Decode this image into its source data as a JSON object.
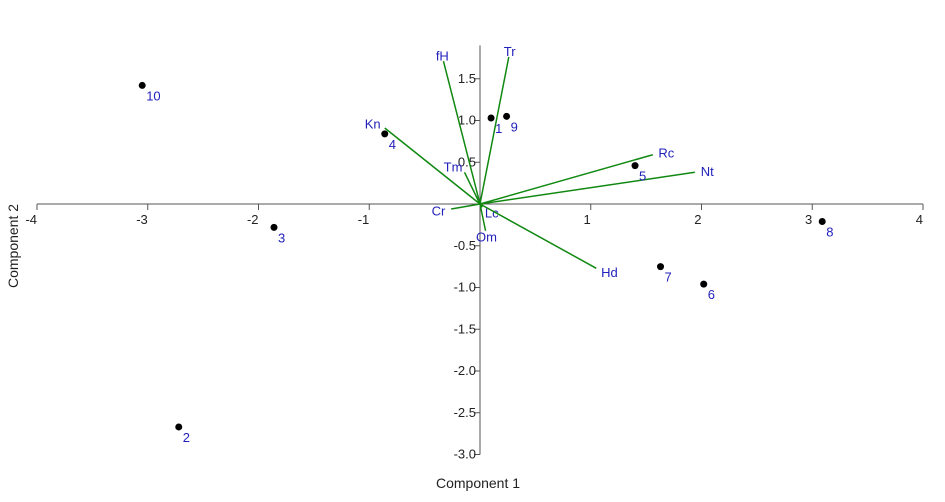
{
  "chart_data": {
    "type": "scatter",
    "subtype": "biplot",
    "title": "",
    "xlabel": "Component 1",
    "ylabel": "Component 2",
    "xlim": [
      -4,
      4
    ],
    "ylim": [
      -3.0,
      1.9
    ],
    "x_ticks": [
      "-4",
      "-3",
      "-2",
      "-1",
      "1",
      "2",
      "3",
      "4"
    ],
    "y_ticks": [
      "1.5",
      "1.0",
      "0.5",
      "-0.5",
      "-1.0",
      "-1.5",
      "-2.0",
      "-2.5",
      "-3.0"
    ],
    "grid": false,
    "legend": "none",
    "colors": {
      "points": "#000000",
      "labels": "#2222bb",
      "vectors": "#118811",
      "axes": "#555555"
    },
    "points": [
      {
        "label": "1",
        "x": 0.1,
        "y": 1.03
      },
      {
        "label": "2",
        "x": -2.72,
        "y": -2.67
      },
      {
        "label": "3",
        "x": -1.86,
        "y": -0.28
      },
      {
        "label": "4",
        "x": -0.86,
        "y": 0.84
      },
      {
        "label": "5",
        "x": 1.4,
        "y": 0.46
      },
      {
        "label": "6",
        "x": 2.02,
        "y": -0.96
      },
      {
        "label": "7",
        "x": 1.63,
        "y": -0.75
      },
      {
        "label": "8",
        "x": 3.09,
        "y": -0.21
      },
      {
        "label": "9",
        "x": 0.24,
        "y": 1.05
      },
      {
        "label": "10",
        "x": -3.05,
        "y": 1.42
      }
    ],
    "vectors": [
      {
        "label": "fH",
        "x": -0.33,
        "y": 1.71
      },
      {
        "label": "Tr",
        "x": 0.26,
        "y": 1.76
      },
      {
        "label": "Kn",
        "x": -0.86,
        "y": 0.91
      },
      {
        "label": "Tm",
        "x": -0.14,
        "y": 0.38
      },
      {
        "label": "Rc",
        "x": 1.56,
        "y": 0.59
      },
      {
        "label": "Nt",
        "x": 1.94,
        "y": 0.38
      },
      {
        "label": "Cr",
        "x": -0.26,
        "y": -0.06
      },
      {
        "label": "Lc",
        "x": 0.02,
        "y": -0.04
      },
      {
        "label": "Om",
        "x": 0.05,
        "y": -0.32
      },
      {
        "label": "Hd",
        "x": 1.05,
        "y": -0.77
      }
    ]
  }
}
